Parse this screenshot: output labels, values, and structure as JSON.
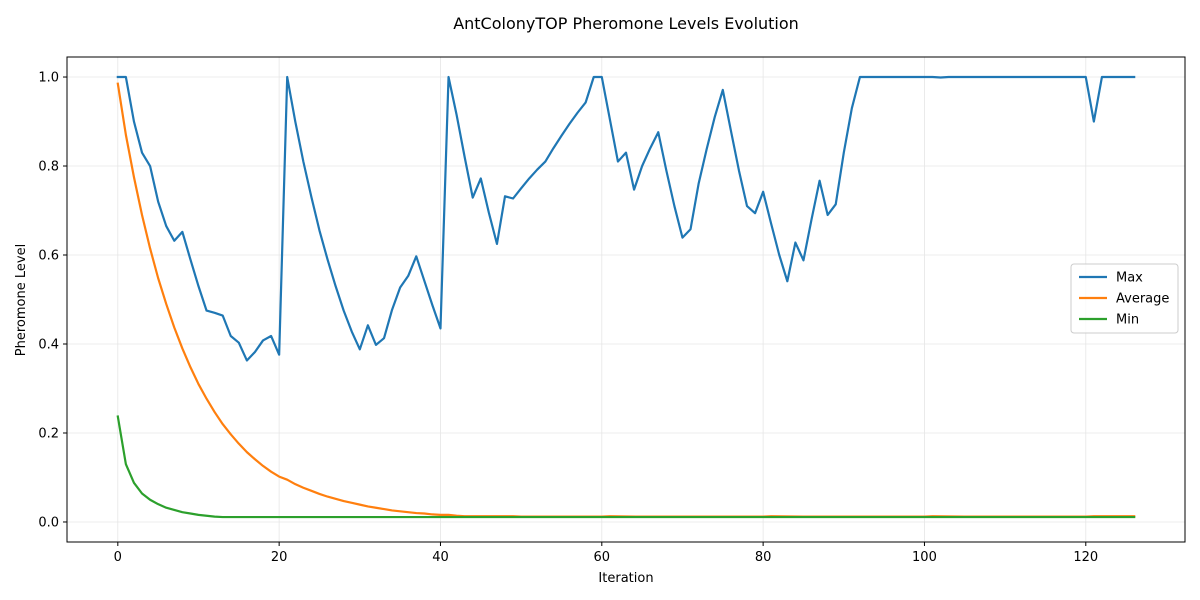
{
  "chart_data": {
    "type": "line",
    "title": "AntColonyTOP Pheromone Levels Evolution",
    "xlabel": "Iteration",
    "ylabel": "Pheromone Level",
    "xlim": [
      -6.3,
      132.3
    ],
    "ylim": [
      -0.045,
      1.045
    ],
    "xticks": [
      0,
      20,
      40,
      60,
      80,
      100,
      120
    ],
    "yticks": [
      0.0,
      0.2,
      0.4,
      0.6,
      0.8,
      1.0
    ],
    "xtick_labels": [
      "0",
      "20",
      "40",
      "60",
      "80",
      "100",
      "120"
    ],
    "ytick_labels": [
      "0.0",
      "0.2",
      "0.4",
      "0.6",
      "0.8",
      "1.0"
    ],
    "grid": true,
    "legend_position": "center-right",
    "series": [
      {
        "name": "Max",
        "color": "#1f77b4",
        "points": [
          [
            0,
            1.0
          ],
          [
            1,
            1.0
          ],
          [
            2,
            0.9
          ],
          [
            3,
            0.83
          ],
          [
            4,
            0.8
          ],
          [
            5,
            0.72
          ],
          [
            6,
            0.665
          ],
          [
            7,
            0.632
          ],
          [
            8,
            0.652
          ],
          [
            9,
            0.59
          ],
          [
            10,
            0.53
          ],
          [
            11,
            0.475
          ],
          [
            12,
            0.47
          ],
          [
            13,
            0.464
          ],
          [
            14,
            0.418
          ],
          [
            15,
            0.403
          ],
          [
            16,
            0.363
          ],
          [
            17,
            0.382
          ],
          [
            18,
            0.408
          ],
          [
            19,
            0.418
          ],
          [
            20,
            0.376
          ],
          [
            21,
            1.0
          ],
          [
            22,
            0.9
          ],
          [
            23,
            0.81
          ],
          [
            24,
            0.73
          ],
          [
            25,
            0.655
          ],
          [
            26,
            0.59
          ],
          [
            27,
            0.53
          ],
          [
            28,
            0.475
          ],
          [
            29,
            0.428
          ],
          [
            30,
            0.388
          ],
          [
            31,
            0.442
          ],
          [
            32,
            0.398
          ],
          [
            33,
            0.413
          ],
          [
            34,
            0.477
          ],
          [
            35,
            0.527
          ],
          [
            36,
            0.553
          ],
          [
            37,
            0.597
          ],
          [
            38,
            0.542
          ],
          [
            39,
            0.487
          ],
          [
            40,
            0.435
          ],
          [
            41,
            1.0
          ],
          [
            42,
            0.915
          ],
          [
            43,
            0.82
          ],
          [
            44,
            0.729
          ],
          [
            45,
            0.772
          ],
          [
            46,
            0.695
          ],
          [
            47,
            0.625
          ],
          [
            48,
            0.732
          ],
          [
            49,
            0.727
          ],
          [
            50,
            0.75
          ],
          [
            51,
            0.772
          ],
          [
            52,
            0.792
          ],
          [
            53,
            0.81
          ],
          [
            54,
            0.84
          ],
          [
            55,
            0.868
          ],
          [
            56,
            0.895
          ],
          [
            57,
            0.92
          ],
          [
            58,
            0.943
          ],
          [
            59,
            1.0
          ],
          [
            60,
            1.0
          ],
          [
            61,
            0.905
          ],
          [
            62,
            0.81
          ],
          [
            63,
            0.83
          ],
          [
            64,
            0.747
          ],
          [
            65,
            0.8
          ],
          [
            66,
            0.84
          ],
          [
            67,
            0.876
          ],
          [
            68,
            0.79
          ],
          [
            69,
            0.71
          ],
          [
            70,
            0.639
          ],
          [
            71,
            0.658
          ],
          [
            72,
            0.76
          ],
          [
            73,
            0.838
          ],
          [
            74,
            0.91
          ],
          [
            75,
            0.971
          ],
          [
            76,
            0.88
          ],
          [
            77,
            0.79
          ],
          [
            78,
            0.71
          ],
          [
            79,
            0.694
          ],
          [
            80,
            0.742
          ],
          [
            81,
            0.67
          ],
          [
            82,
            0.6
          ],
          [
            83,
            0.541
          ],
          [
            84,
            0.628
          ],
          [
            85,
            0.588
          ],
          [
            86,
            0.68
          ],
          [
            87,
            0.767
          ],
          [
            88,
            0.69
          ],
          [
            89,
            0.714
          ],
          [
            90,
            0.83
          ],
          [
            91,
            0.93
          ],
          [
            92,
            1.0
          ],
          [
            93,
            1.0
          ],
          [
            94,
            1.0
          ],
          [
            95,
            1.0
          ],
          [
            96,
            1.0
          ],
          [
            97,
            1.0
          ],
          [
            98,
            1.0
          ],
          [
            99,
            1.0
          ],
          [
            100,
            1.0
          ],
          [
            101,
            1.0
          ],
          [
            102,
            0.999
          ],
          [
            103,
            1.0
          ],
          [
            104,
            1.0
          ],
          [
            105,
            1.0
          ],
          [
            106,
            1.0
          ],
          [
            107,
            1.0
          ],
          [
            108,
            1.0
          ],
          [
            109,
            1.0
          ],
          [
            110,
            1.0
          ],
          [
            111,
            1.0
          ],
          [
            112,
            1.0
          ],
          [
            113,
            1.0
          ],
          [
            114,
            1.0
          ],
          [
            115,
            1.0
          ],
          [
            116,
            1.0
          ],
          [
            117,
            1.0
          ],
          [
            118,
            1.0
          ],
          [
            119,
            1.0
          ],
          [
            120,
            1.0
          ],
          [
            121,
            0.9
          ],
          [
            122,
            1.0
          ],
          [
            123,
            1.0
          ],
          [
            124,
            1.0
          ],
          [
            125,
            1.0
          ],
          [
            126,
            1.0
          ]
        ]
      },
      {
        "name": "Average",
        "color": "#ff7f0e",
        "points": [
          [
            0,
            0.985
          ],
          [
            1,
            0.87
          ],
          [
            2,
            0.775
          ],
          [
            3,
            0.69
          ],
          [
            4,
            0.615
          ],
          [
            5,
            0.548
          ],
          [
            6,
            0.49
          ],
          [
            7,
            0.437
          ],
          [
            8,
            0.39
          ],
          [
            9,
            0.348
          ],
          [
            10,
            0.31
          ],
          [
            11,
            0.277
          ],
          [
            12,
            0.247
          ],
          [
            13,
            0.22
          ],
          [
            14,
            0.197
          ],
          [
            15,
            0.176
          ],
          [
            16,
            0.157
          ],
          [
            17,
            0.141
          ],
          [
            18,
            0.126
          ],
          [
            19,
            0.113
          ],
          [
            20,
            0.102
          ],
          [
            21,
            0.095
          ],
          [
            22,
            0.085
          ],
          [
            23,
            0.077
          ],
          [
            24,
            0.07
          ],
          [
            25,
            0.063
          ],
          [
            26,
            0.057
          ],
          [
            27,
            0.052
          ],
          [
            28,
            0.047
          ],
          [
            29,
            0.043
          ],
          [
            30,
            0.039
          ],
          [
            31,
            0.035
          ],
          [
            32,
            0.032
          ],
          [
            33,
            0.029
          ],
          [
            34,
            0.026
          ],
          [
            35,
            0.024
          ],
          [
            36,
            0.022
          ],
          [
            37,
            0.02
          ],
          [
            38,
            0.019
          ],
          [
            39,
            0.017
          ],
          [
            40,
            0.016
          ],
          [
            41,
            0.016
          ],
          [
            42,
            0.014
          ],
          [
            43,
            0.013
          ],
          [
            44,
            0.013
          ],
          [
            45,
            0.013
          ],
          [
            46,
            0.013
          ],
          [
            47,
            0.013
          ],
          [
            48,
            0.013
          ],
          [
            49,
            0.013
          ],
          [
            50,
            0.012
          ],
          [
            55,
            0.012
          ],
          [
            60,
            0.012
          ],
          [
            61,
            0.013
          ],
          [
            65,
            0.012
          ],
          [
            70,
            0.012
          ],
          [
            75,
            0.012
          ],
          [
            80,
            0.012
          ],
          [
            81,
            0.013
          ],
          [
            85,
            0.012
          ],
          [
            90,
            0.012
          ],
          [
            95,
            0.012
          ],
          [
            100,
            0.012
          ],
          [
            101,
            0.013
          ],
          [
            105,
            0.012
          ],
          [
            110,
            0.012
          ],
          [
            115,
            0.012
          ],
          [
            120,
            0.012
          ],
          [
            121,
            0.013
          ],
          [
            126,
            0.013
          ]
        ]
      },
      {
        "name": "Min",
        "color": "#2ca02c",
        "points": [
          [
            0,
            0.237
          ],
          [
            1,
            0.13
          ],
          [
            2,
            0.088
          ],
          [
            3,
            0.064
          ],
          [
            4,
            0.05
          ],
          [
            5,
            0.04
          ],
          [
            6,
            0.032
          ],
          [
            7,
            0.027
          ],
          [
            8,
            0.022
          ],
          [
            9,
            0.019
          ],
          [
            10,
            0.016
          ],
          [
            11,
            0.014
          ],
          [
            12,
            0.012
          ],
          [
            13,
            0.011
          ],
          [
            14,
            0.011
          ],
          [
            20,
            0.011
          ],
          [
            40,
            0.011
          ],
          [
            60,
            0.011
          ],
          [
            80,
            0.011
          ],
          [
            100,
            0.011
          ],
          [
            120,
            0.011
          ],
          [
            126,
            0.011
          ]
        ]
      }
    ]
  }
}
